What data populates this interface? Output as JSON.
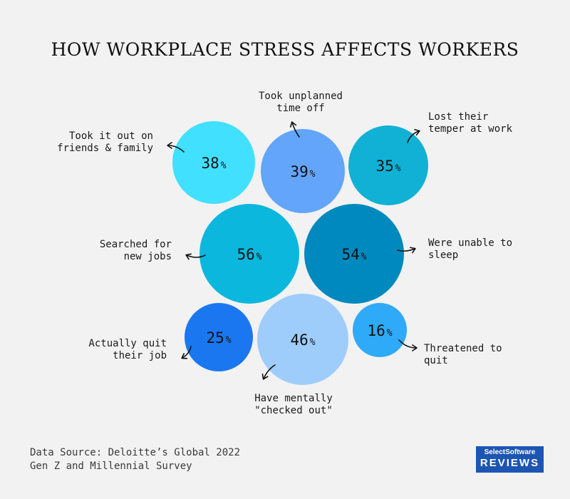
{
  "title": "HOW WORKPLACE STRESS AFFECTS WORKERS",
  "chart_data": {
    "type": "bubble",
    "unit": "%",
    "items": [
      {
        "label": [
          "Took it out on",
          "friends & family"
        ],
        "value": 38,
        "color": "#41e0ff"
      },
      {
        "label": [
          "Took unplanned",
          "time off"
        ],
        "value": 39,
        "color": "#63a5fb"
      },
      {
        "label": [
          "Lost their",
          "temper at work"
        ],
        "value": 35,
        "color": "#10b1d5"
      },
      {
        "label": [
          "Searched for",
          "new jobs"
        ],
        "value": 56,
        "color": "#0cb7dd"
      },
      {
        "label": [
          "Were unable to",
          "sleep"
        ],
        "value": 54,
        "color": "#0089be"
      },
      {
        "label": [
          "Actually quit",
          "their job"
        ],
        "value": 25,
        "color": "#1b77f0"
      },
      {
        "label": [
          "Have mentally",
          "\"checked out\""
        ],
        "value": 46,
        "color": "#9ecdfb"
      },
      {
        "label": [
          "Threatened to",
          "quit"
        ],
        "value": 16,
        "color": "#2eaaf8"
      }
    ]
  },
  "source": {
    "line1": "Data Source: Deloitte’s Global 2022",
    "line2": "Gen Z and Millennial Survey"
  },
  "brand": {
    "top": "SelectSoftware",
    "bottom": "REVIEWS"
  }
}
